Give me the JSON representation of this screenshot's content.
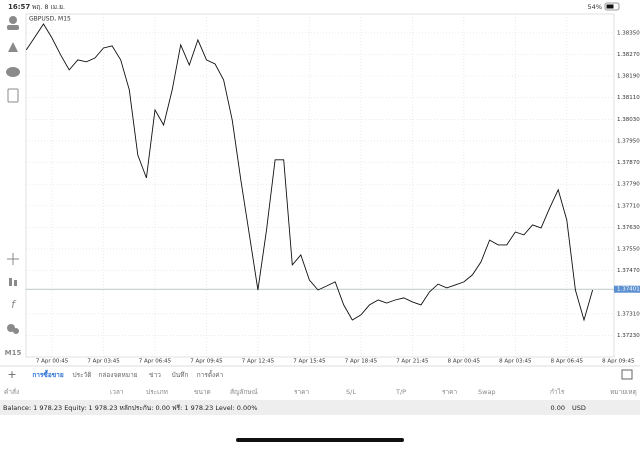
{
  "status_bar": {
    "time": "16:57",
    "date": "พฤ. 8 เม.ย.",
    "battery": "54%"
  },
  "toolbar": {
    "timeframe": "M15"
  },
  "chart_data": {
    "type": "line",
    "title": "GBPUSD, M15",
    "color": "#111111",
    "grid": true,
    "values": [
      1.38287,
      1.38335,
      1.38383,
      1.38331,
      1.38269,
      1.38213,
      1.3825,
      1.38243,
      1.38257,
      1.38294,
      1.38302,
      1.3825,
      1.38139,
      1.37898,
      1.37813,
      1.38065,
      1.38009,
      1.38139,
      1.38306,
      1.38231,
      1.38324,
      1.3825,
      1.38235,
      1.38176,
      1.38028,
      1.37806,
      1.37602,
      1.37398,
      1.3762,
      1.3788,
      1.3788,
      1.37491,
      1.37528,
      1.37435,
      1.37398,
      1.37413,
      1.37428,
      1.37343,
      1.37287,
      1.37306,
      1.37343,
      1.37361,
      1.3735,
      1.37361,
      1.37369,
      1.37354,
      1.37343,
      1.37391,
      1.3742,
      1.37406,
      1.37417,
      1.37428,
      1.37454,
      1.37502,
      1.37583,
      1.37565,
      1.37565,
      1.37613,
      1.37602,
      1.37639,
      1.37628,
      1.37702,
      1.37769,
      1.37657,
      1.37398,
      1.37287,
      1.37398
    ],
    "xlim": [
      0,
      68.5
    ],
    "xticks": [
      {
        "value": 3,
        "label": "7 Apr 00:45"
      },
      {
        "value": 9,
        "label": "7 Apr 03:45"
      },
      {
        "value": 15,
        "label": "7 Apr 06:45"
      },
      {
        "value": 21,
        "label": "7 Apr 09:45"
      },
      {
        "value": 27,
        "label": "7 Apr 12:45"
      },
      {
        "value": 33,
        "label": "7 Apr 15:45"
      },
      {
        "value": 39,
        "label": "7 Apr 18:45"
      },
      {
        "value": 45,
        "label": "7 Apr 21:45"
      },
      {
        "value": 51,
        "label": "8 Apr 00:45"
      },
      {
        "value": 57,
        "label": "8 Apr 03:45"
      },
      {
        "value": 63,
        "label": "8 Apr 06:45"
      },
      {
        "value": 69,
        "label": "8 Apr 09:45"
      }
    ],
    "ylim": [
      1.3715,
      1.3842
    ],
    "yticks": [
      {
        "value": 1.3835,
        "label": "1.38350"
      },
      {
        "value": 1.3827,
        "label": "1.38270"
      },
      {
        "value": 1.3819,
        "label": "1.38190"
      },
      {
        "value": 1.3811,
        "label": "1.38110"
      },
      {
        "value": 1.3803,
        "label": "1.38030"
      },
      {
        "value": 1.3795,
        "label": "1.37950"
      },
      {
        "value": 1.3787,
        "label": "1.37870"
      },
      {
        "value": 1.3779,
        "label": "1.37790"
      },
      {
        "value": 1.3771,
        "label": "1.37710"
      },
      {
        "value": 1.3763,
        "label": "1.37630"
      },
      {
        "value": 1.3755,
        "label": "1.37550"
      },
      {
        "value": 1.3747,
        "label": "1.37470"
      },
      {
        "value": 1.3731,
        "label": "1.37310"
      },
      {
        "value": 1.3723,
        "label": "1.37230"
      }
    ],
    "current_price": {
      "value": 1.37401,
      "label": "1.37401"
    }
  },
  "tabs": [
    "+",
    "การซื้อขาย",
    "ประวัติ",
    "กล่องจดหมาย",
    "ข่าว",
    "บันทึก",
    "การตั้งค่า"
  ],
  "table": {
    "headers": [
      "คำสั่ง",
      "เวลา",
      "ประเภท",
      "ขนาด",
      "สัญลักษณ์",
      "ราคา",
      "S/L",
      "T/P",
      "ราคา",
      "Swap",
      "กำไร",
      "หมายเหตุ"
    ]
  },
  "footer": {
    "balance": "Balance: 1 978.23 Equity: 1 978.23 หลักประกัน: 0.00 ฟรี: 1 978.23 Level: 0.00%",
    "profit": "0.00",
    "currency": "USD"
  }
}
